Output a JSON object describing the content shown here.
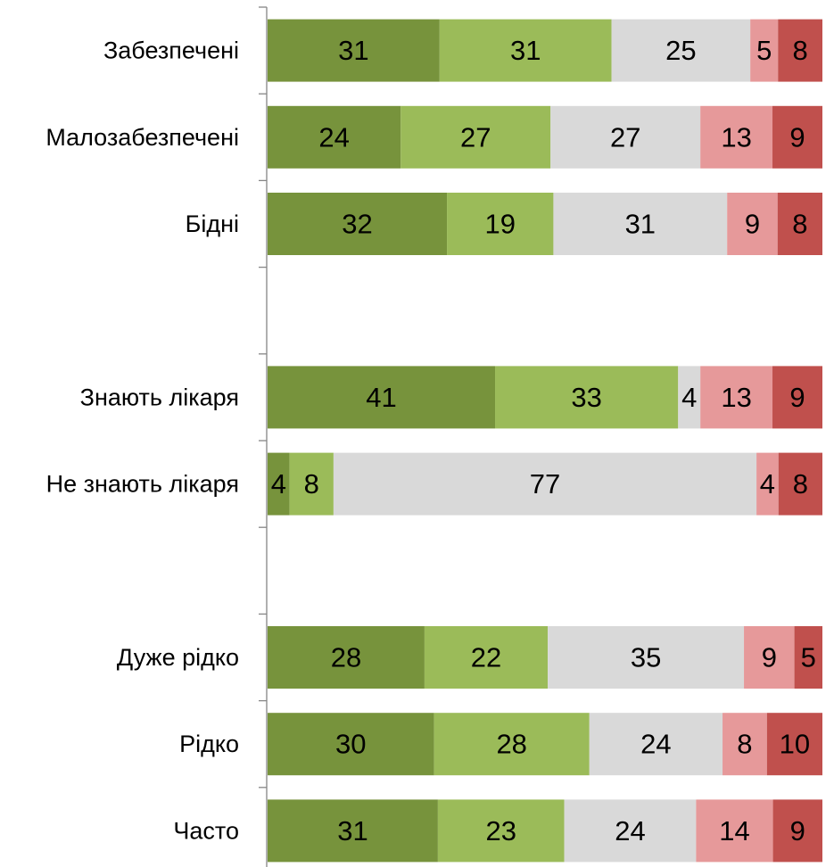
{
  "chart_data": {
    "type": "bar",
    "orientation": "horizontal",
    "stacked": true,
    "percent_stacked": true,
    "categories": [
      "Забезпечені",
      "Малозабезпечені",
      "Бідні",
      "",
      "Знають лікаря",
      "Не знають лікаря",
      "",
      "Дуже рідко",
      "Рідко",
      "Часто"
    ],
    "series": [
      {
        "color": "#77933C",
        "values": [
          31,
          24,
          32,
          null,
          41,
          4,
          null,
          28,
          30,
          31
        ]
      },
      {
        "color": "#9BBB59",
        "values": [
          31,
          27,
          19,
          null,
          33,
          8,
          null,
          22,
          28,
          23
        ]
      },
      {
        "color": "#D9D9D9",
        "values": [
          25,
          27,
          31,
          null,
          4,
          77,
          null,
          35,
          24,
          24
        ]
      },
      {
        "color": "#E6999A",
        "values": [
          5,
          13,
          9,
          null,
          13,
          4,
          null,
          9,
          8,
          14
        ]
      },
      {
        "color": "#C0504D",
        "values": [
          8,
          9,
          8,
          null,
          9,
          8,
          null,
          5,
          10,
          9
        ]
      }
    ],
    "title": "",
    "xlabel": "",
    "ylabel": "",
    "legend": "none",
    "grid": false,
    "data_labels": true
  }
}
